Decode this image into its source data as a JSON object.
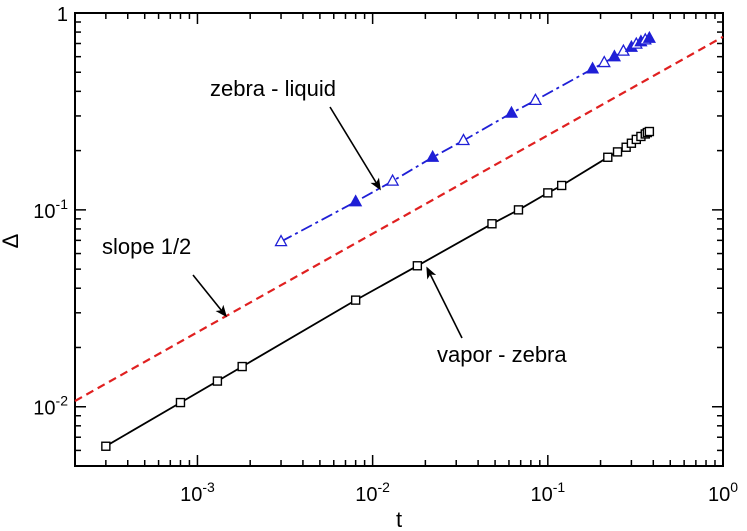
{
  "chart_data": {
    "type": "scatter",
    "xscale": "log",
    "yscale": "log",
    "xlim": [
      0.0002,
      1.0
    ],
    "ylim": [
      0.005,
      1.0
    ],
    "xlabel": "t",
    "ylabel": "Δ",
    "xticks": [
      {
        "value": 0.001,
        "base": "10",
        "exp": "-3"
      },
      {
        "value": 0.01,
        "base": "10",
        "exp": "-2"
      },
      {
        "value": 0.1,
        "base": "10",
        "exp": "-1"
      },
      {
        "value": 1,
        "base": "10",
        "exp": "0"
      }
    ],
    "yticks": [
      {
        "value": 0.01,
        "base": "10",
        "exp": "-2"
      },
      {
        "value": 0.1,
        "base": "10",
        "exp": "-1"
      },
      {
        "value": 1,
        "base": "1",
        "exp": ""
      }
    ],
    "grid": false,
    "series": [
      {
        "name": "vapor - zebra",
        "color": "#000000",
        "marker": "square",
        "line": "solid",
        "x": [
          0.0003,
          0.0008,
          0.0013,
          0.0018,
          0.008,
          0.018,
          0.048,
          0.068,
          0.1,
          0.12,
          0.22,
          0.25,
          0.28,
          0.3,
          0.32,
          0.34,
          0.36,
          0.37,
          0.38
        ],
        "y": [
          0.0063,
          0.0105,
          0.0135,
          0.016,
          0.0348,
          0.052,
          0.085,
          0.1,
          0.122,
          0.133,
          0.185,
          0.197,
          0.208,
          0.218,
          0.228,
          0.236,
          0.243,
          0.247,
          0.25
        ]
      },
      {
        "name": "zebra - liquid",
        "color": "#1f1fd6",
        "marker": "triangle",
        "line": "dashdot",
        "x": [
          0.003,
          0.008,
          0.013,
          0.022,
          0.033,
          0.062,
          0.085,
          0.18,
          0.21,
          0.24,
          0.27,
          0.3,
          0.32,
          0.34,
          0.36,
          0.38
        ],
        "y": [
          0.069,
          0.11,
          0.14,
          0.185,
          0.225,
          0.31,
          0.36,
          0.52,
          0.56,
          0.6,
          0.64,
          0.67,
          0.695,
          0.715,
          0.73,
          0.745
        ]
      },
      {
        "name": "slope 1/2",
        "color": "#e02020",
        "marker": "none",
        "line": "dashed",
        "x": [
          0.0002,
          1.0
        ],
        "y": [
          0.0107,
          0.7566
        ]
      }
    ],
    "annotations": [
      {
        "text": "zebra - liquid",
        "target": [
          0.011,
          0.128
        ]
      },
      {
        "text": "slope 1/2",
        "target": [
          0.00145,
          0.029
        ]
      },
      {
        "text": "vapor - zebra",
        "target": [
          0.0205,
          0.0505
        ]
      }
    ]
  }
}
